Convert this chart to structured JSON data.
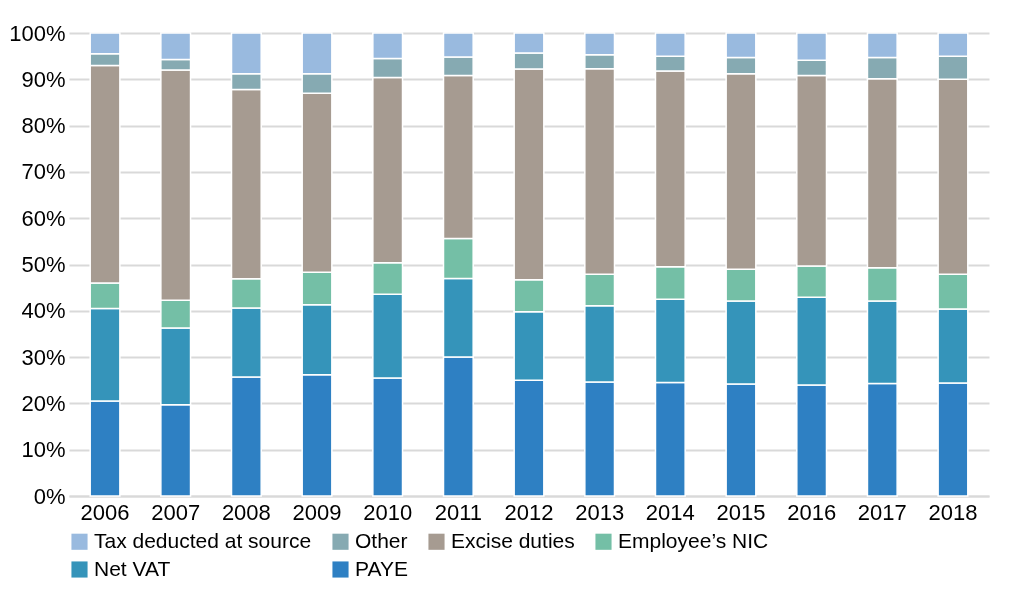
{
  "chart_data": {
    "type": "bar",
    "stacked": true,
    "categories": [
      "2006",
      "2007",
      "2008",
      "2009",
      "2010",
      "2011",
      "2012",
      "2013",
      "2014",
      "2015",
      "2016",
      "2017",
      "2018"
    ],
    "series": [
      {
        "name": "PAYE",
        "color": "#2e80c3",
        "values": [
          20.5,
          19.7,
          25.7,
          26.2,
          25.5,
          30.0,
          25.0,
          24.6,
          24.5,
          24.2,
          24.0,
          24.3,
          24.4
        ]
      },
      {
        "name": "Net VAT",
        "color": "#3594ba",
        "values": [
          20.0,
          16.6,
          14.9,
          15.1,
          18.1,
          17.0,
          14.8,
          16.5,
          18.0,
          17.9,
          18.9,
          17.8,
          16.0
        ]
      },
      {
        "name": "Employee’s NIC",
        "color": "#74bfa6",
        "values": [
          5.5,
          6.0,
          6.3,
          7.0,
          6.8,
          8.6,
          6.9,
          6.8,
          7.0,
          6.9,
          6.8,
          7.2,
          7.5
        ]
      },
      {
        "name": "Excise duties",
        "color": "#a69b91",
        "values": [
          47.0,
          49.7,
          40.9,
          38.7,
          40.0,
          35.2,
          45.5,
          44.4,
          42.3,
          42.2,
          41.1,
          40.8,
          42.1
        ]
      },
      {
        "name": "Other",
        "color": "#86aab2",
        "values": [
          2.5,
          2.3,
          3.4,
          4.2,
          4.1,
          4.0,
          3.5,
          3.0,
          3.2,
          3.5,
          3.3,
          4.6,
          5.0
        ]
      },
      {
        "name": "Tax deducted at source",
        "color": "#99badf",
        "values": [
          4.5,
          5.7,
          8.8,
          8.8,
          5.5,
          5.2,
          4.3,
          4.7,
          5.0,
          5.3,
          5.9,
          5.3,
          5.0
        ]
      }
    ],
    "ylim": [
      0,
      100
    ],
    "yticks": [
      {
        "value": 0,
        "label": "0%"
      },
      {
        "value": 10,
        "label": "10%"
      },
      {
        "value": 20,
        "label": "20%"
      },
      {
        "value": 30,
        "label": "30%"
      },
      {
        "value": 40,
        "label": "40%"
      },
      {
        "value": 50,
        "label": "50%"
      },
      {
        "value": 60,
        "label": "60%"
      },
      {
        "value": 70,
        "label": "70%"
      },
      {
        "value": 80,
        "label": "80%"
      },
      {
        "value": 90,
        "label": "90%"
      },
      {
        "value": 100,
        "label": "100%"
      }
    ],
    "grid": "y",
    "legend": "bottom"
  }
}
